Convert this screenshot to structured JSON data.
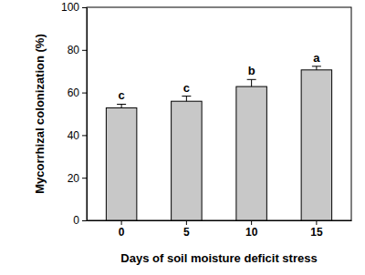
{
  "chart_data": {
    "type": "bar",
    "x_label": "Days of soil moisture deficit stress",
    "y_label": "Mycorrhizal colonization (%)",
    "categories": [
      "0",
      "5",
      "10",
      "15"
    ],
    "values": [
      52.8,
      55.9,
      62.8,
      70.6
    ],
    "errors": [
      1.7,
      2.4,
      3.3,
      1.7
    ],
    "annotations": [
      "c",
      "c",
      "b",
      "a"
    ],
    "color": "#c8c8c8",
    "ylim": [
      0,
      100
    ],
    "yticks": [
      0,
      20,
      40,
      60,
      80,
      100
    ],
    "grid": false
  }
}
